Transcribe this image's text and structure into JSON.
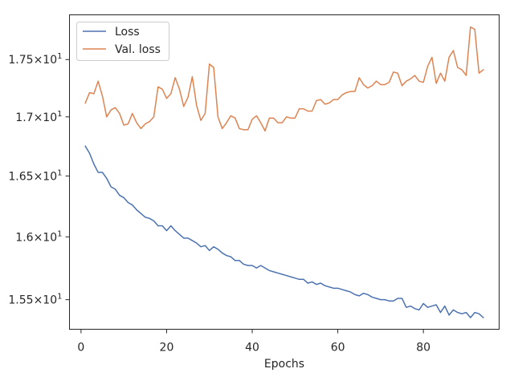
{
  "chart_data": {
    "type": "line",
    "xlabel": "Epochs",
    "ylabel": "",
    "xlim": [
      -2.7,
      97.7
    ],
    "ylim": [
      15.27,
      17.9
    ],
    "yscale": "log",
    "grid": false,
    "legend_position": "top-left",
    "x_ticks": [
      {
        "value": 0,
        "label": "0"
      },
      {
        "value": 20,
        "label": "20"
      },
      {
        "value": 40,
        "label": "40"
      },
      {
        "value": 60,
        "label": "60"
      },
      {
        "value": 80,
        "label": "80"
      }
    ],
    "y_ticks": [
      {
        "value": 15.5,
        "mantissa": "1.55",
        "times": "×",
        "base": "10",
        "exp": "1"
      },
      {
        "value": 16.0,
        "mantissa": "1.6",
        "times": "×",
        "base": "10",
        "exp": "1"
      },
      {
        "value": 16.5,
        "mantissa": "1.65",
        "times": "×",
        "base": "10",
        "exp": "1"
      },
      {
        "value": 17.0,
        "mantissa": "1.7",
        "times": "×",
        "base": "10",
        "exp": "1"
      },
      {
        "value": 17.5,
        "mantissa": "1.75",
        "times": "×",
        "base": "10",
        "exp": "1"
      }
    ],
    "x": [
      1,
      2,
      3,
      4,
      5,
      6,
      7,
      8,
      9,
      10,
      11,
      12,
      13,
      14,
      15,
      16,
      17,
      18,
      19,
      20,
      21,
      22,
      23,
      24,
      25,
      26,
      27,
      28,
      29,
      30,
      31,
      32,
      33,
      34,
      35,
      36,
      37,
      38,
      39,
      40,
      41,
      42,
      43,
      44,
      45,
      46,
      47,
      48,
      49,
      50,
      51,
      52,
      53,
      54,
      55,
      56,
      57,
      58,
      59,
      60,
      61,
      62,
      63,
      64,
      65,
      66,
      67,
      68,
      69,
      70,
      71,
      72,
      73,
      74,
      75,
      76,
      77,
      78,
      79,
      80,
      81,
      82,
      83,
      84,
      85,
      86,
      87,
      88,
      89,
      90,
      91,
      92,
      93,
      94
    ],
    "series": [
      {
        "name": "Loss",
        "color": "#4c72b0",
        "values": [
          16.75,
          16.69,
          16.6,
          16.53,
          16.53,
          16.48,
          16.41,
          16.39,
          16.34,
          16.32,
          16.28,
          16.26,
          16.22,
          16.19,
          16.16,
          16.15,
          16.13,
          16.09,
          16.09,
          16.05,
          16.09,
          16.05,
          16.02,
          15.99,
          15.99,
          15.97,
          15.95,
          15.92,
          15.93,
          15.89,
          15.92,
          15.9,
          15.87,
          15.85,
          15.84,
          15.81,
          15.81,
          15.78,
          15.77,
          15.77,
          15.75,
          15.77,
          15.75,
          15.73,
          15.72,
          15.71,
          15.7,
          15.69,
          15.68,
          15.67,
          15.66,
          15.66,
          15.63,
          15.64,
          15.62,
          15.63,
          15.61,
          15.6,
          15.59,
          15.59,
          15.58,
          15.57,
          15.56,
          15.54,
          15.53,
          15.55,
          15.54,
          15.52,
          15.51,
          15.5,
          15.5,
          15.49,
          15.49,
          15.51,
          15.51,
          15.44,
          15.45,
          15.43,
          15.42,
          15.47,
          15.44,
          15.45,
          15.46,
          15.4,
          15.45,
          15.38,
          15.42,
          15.4,
          15.39,
          15.4,
          15.36,
          15.4,
          15.39,
          15.36
        ]
      },
      {
        "name": "Val. loss",
        "color": "#dd8452",
        "values": [
          17.12,
          17.21,
          17.2,
          17.31,
          17.18,
          17.0,
          17.06,
          17.08,
          17.03,
          16.93,
          16.94,
          17.03,
          16.95,
          16.9,
          16.94,
          16.96,
          17.0,
          17.26,
          17.24,
          17.16,
          17.2,
          17.34,
          17.24,
          17.09,
          17.17,
          17.35,
          17.1,
          16.97,
          17.03,
          17.46,
          17.43,
          17.0,
          16.9,
          16.95,
          17.01,
          16.99,
          16.9,
          16.89,
          16.89,
          16.98,
          17.01,
          16.95,
          16.88,
          16.99,
          16.99,
          16.95,
          16.95,
          17.0,
          16.99,
          16.99,
          17.07,
          17.07,
          17.05,
          17.05,
          17.14,
          17.15,
          17.11,
          17.12,
          17.15,
          17.15,
          17.19,
          17.21,
          17.22,
          17.22,
          17.34,
          17.28,
          17.25,
          17.27,
          17.31,
          17.28,
          17.28,
          17.3,
          17.39,
          17.38,
          17.27,
          17.31,
          17.33,
          17.36,
          17.31,
          17.3,
          17.44,
          17.52,
          17.29,
          17.38,
          17.31,
          17.52,
          17.58,
          17.43,
          17.41,
          17.36,
          17.79,
          17.77,
          17.38,
          17.41
        ]
      }
    ]
  }
}
